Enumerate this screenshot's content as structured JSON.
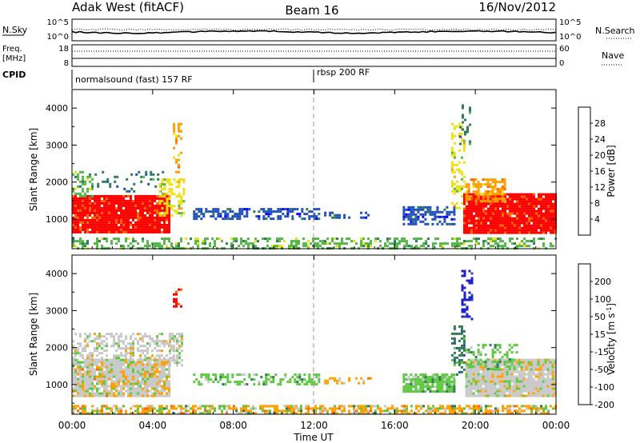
{
  "header": {
    "station": "Adak West (fitACF)",
    "beam": "Beam 16",
    "date": "16/Nov/2012"
  },
  "summary": {
    "nsky_label": "N.Sky",
    "nsearch_label": "N.Search",
    "freq_label": "Freq.",
    "freq_unit": "[MHz]",
    "nave_label": "Nave",
    "cpid_label": "CPID",
    "nsky_ticks": [
      "10^5",
      "10^0"
    ],
    "nsearch_ticks": [
      "10^5",
      "10^0"
    ],
    "freq_ticks": [
      "18",
      "8"
    ],
    "nave_ticks": [
      "60",
      "0"
    ],
    "cpid_segments": [
      {
        "label": "normalsound (fast) 157 RF",
        "start_hour": 0
      },
      {
        "label": "rbsp 200 RF",
        "start_hour": 12
      }
    ]
  },
  "x_axis": {
    "label": "Time UT",
    "ticks": [
      "00:00",
      "04:00",
      "08:00",
      "12:00",
      "16:00",
      "20:00",
      "00:00"
    ]
  },
  "chart_data": [
    {
      "type": "heatmap",
      "panel": "power",
      "ylabel": "Slant Range [km]",
      "ylim": [
        200,
        4500
      ],
      "yticks": [
        1000,
        2000,
        3000,
        4000
      ],
      "xlim": [
        0,
        24
      ],
      "colorbar": {
        "label": "Power [dB]",
        "ticks": [
          "4",
          "8",
          "12",
          "16",
          "20",
          "24",
          "28"
        ],
        "colors": [
          "#0000ff",
          "#1f4fb8",
          "#2e7d5a",
          "#52b848",
          "#f0e010",
          "#ffa000",
          "#ff6600",
          "#ff0000"
        ]
      },
      "regions": [
        {
          "t": [
            0.0,
            4.8
          ],
          "r": [
            650,
            1650
          ],
          "c": 7,
          "d": 0.95
        },
        {
          "t": [
            0.0,
            1.0
          ],
          "r": [
            1650,
            2300
          ],
          "c": 3,
          "d": 0.45
        },
        {
          "t": [
            1.0,
            4.5
          ],
          "r": [
            1700,
            2300
          ],
          "c": 2,
          "d": 0.2
        },
        {
          "t": [
            4.3,
            5.5
          ],
          "r": [
            1100,
            2100
          ],
          "c": 4,
          "d": 0.55
        },
        {
          "t": [
            5.0,
            5.4
          ],
          "r": [
            2300,
            3600
          ],
          "c": 5,
          "d": 0.35
        },
        {
          "t": [
            6.0,
            12.3
          ],
          "r": [
            980,
            1300
          ],
          "c": 1,
          "d": 0.55
        },
        {
          "t": [
            12.5,
            14.8
          ],
          "r": [
            1050,
            1200
          ],
          "c": 1,
          "d": 0.45
        },
        {
          "t": [
            16.4,
            19.0
          ],
          "r": [
            850,
            1350
          ],
          "c": 1,
          "d": 0.6
        },
        {
          "t": [
            18.8,
            19.5
          ],
          "r": [
            1300,
            3600
          ],
          "c": 4,
          "d": 0.35
        },
        {
          "t": [
            19.2,
            19.7
          ],
          "r": [
            3000,
            4100
          ],
          "c": 2,
          "d": 0.3
        },
        {
          "t": [
            19.4,
            24.0
          ],
          "r": [
            600,
            1700
          ],
          "c": 7,
          "d": 0.95
        },
        {
          "t": [
            19.5,
            21.5
          ],
          "r": [
            1500,
            2100
          ],
          "c": 5,
          "d": 0.55
        },
        {
          "t": [
            0.0,
            24.0
          ],
          "r": [
            220,
            500
          ],
          "c": 3,
          "d": 0.45
        }
      ]
    },
    {
      "type": "heatmap",
      "panel": "velocity",
      "ylabel": "Slant Range [km]",
      "ylim": [
        200,
        4500
      ],
      "yticks": [
        1000,
        2000,
        3000,
        4000
      ],
      "xlim": [
        0,
        24
      ],
      "colorbar": {
        "label": "Velocity [m s^-1]",
        "ticks": [
          "200",
          "100",
          "50",
          "15",
          "-15",
          "-50",
          "-100",
          "-200"
        ],
        "colors": [
          "#2020c8",
          "#2e50a0",
          "#2f7a55",
          "#5cc840",
          "#c8c8c8",
          "#ffa000",
          "#ff6600",
          "#ff0000"
        ]
      },
      "regions": [
        {
          "t": [
            0.0,
            4.8
          ],
          "r": [
            700,
            1700
          ],
          "c": 4,
          "d": 0.9
        },
        {
          "t": [
            0.0,
            4.8
          ],
          "r": [
            700,
            1700
          ],
          "c": 5,
          "d": 0.12
        },
        {
          "t": [
            0.0,
            5.0
          ],
          "r": [
            1700,
            2400
          ],
          "c": 4,
          "d": 0.5
        },
        {
          "t": [
            4.8,
            5.4
          ],
          "r": [
            1500,
            2400
          ],
          "c": 4,
          "d": 0.7
        },
        {
          "t": [
            5.0,
            5.4
          ],
          "r": [
            3100,
            3600
          ],
          "c": 7,
          "d": 0.4
        },
        {
          "t": [
            6.0,
            12.3
          ],
          "r": [
            980,
            1300
          ],
          "c": 3,
          "d": 0.45
        },
        {
          "t": [
            12.5,
            14.8
          ],
          "r": [
            1050,
            1200
          ],
          "c": 5,
          "d": 0.4
        },
        {
          "t": [
            16.4,
            19.0
          ],
          "r": [
            800,
            1300
          ],
          "c": 3,
          "d": 0.85
        },
        {
          "t": [
            18.8,
            19.5
          ],
          "r": [
            1300,
            2600
          ],
          "c": 2,
          "d": 0.45
        },
        {
          "t": [
            19.3,
            19.8
          ],
          "r": [
            2800,
            4100
          ],
          "c": 0,
          "d": 0.5
        },
        {
          "t": [
            19.5,
            24.0
          ],
          "r": [
            700,
            1700
          ],
          "c": 4,
          "d": 0.95
        },
        {
          "t": [
            19.5,
            22.0
          ],
          "r": [
            1400,
            2100
          ],
          "c": 3,
          "d": 0.35
        },
        {
          "t": [
            0.0,
            24.0
          ],
          "r": [
            220,
            450
          ],
          "c": 5,
          "d": 0.55
        },
        {
          "t": [
            0.0,
            24.0
          ],
          "r": [
            220,
            450
          ],
          "c": 3,
          "d": 0.2
        }
      ]
    }
  ]
}
